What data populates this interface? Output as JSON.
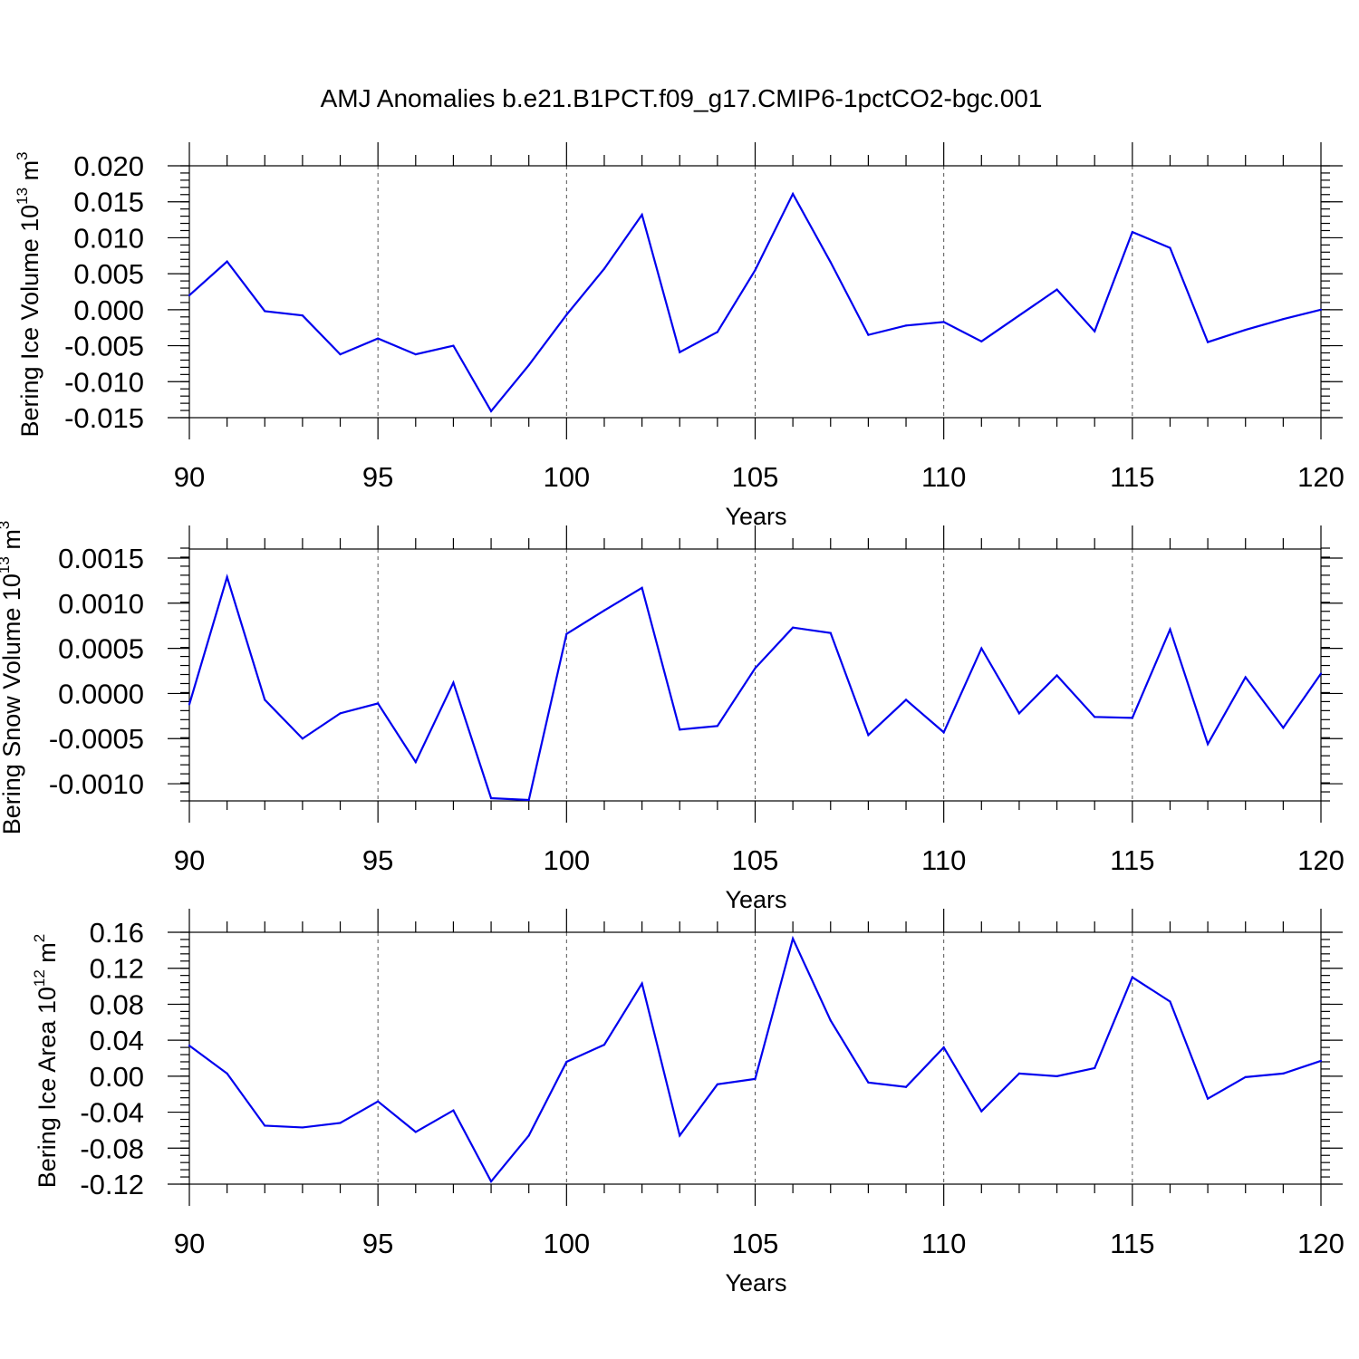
{
  "title": "AMJ Anomalies b.e21.B1PCT.f09_g17.CMIP6-1pctCO2-bgc.001",
  "line_color": "#0000ee",
  "chart_data": [
    {
      "type": "line",
      "name": "bering-ice-volume",
      "ylabel": "Bering Ice Volume 10",
      "ylabel_exp": "13",
      "ylabel_unit": " m",
      "ylabel_unit_exp": "3",
      "xlabel": "Years",
      "xlim": [
        90,
        120
      ],
      "ylim": [
        -0.015,
        0.02
      ],
      "xticks": [
        90,
        95,
        100,
        105,
        110,
        115,
        120
      ],
      "xtick_labels": [
        "90",
        "95",
        "100",
        "105",
        "110",
        "115",
        "120"
      ],
      "yticks": [
        -0.015,
        -0.01,
        -0.005,
        0.0,
        0.005,
        0.01,
        0.015,
        0.02
      ],
      "ytick_labels": [
        "-0.015",
        "-0.010",
        "-0.005",
        "0.000",
        "0.005",
        "0.010",
        "0.015",
        "0.020"
      ],
      "yminor_step": 0.001,
      "grid_x": [
        95,
        100,
        105,
        110,
        115
      ],
      "x": [
        90,
        91,
        92,
        93,
        94,
        95,
        96,
        97,
        98,
        99,
        100,
        101,
        102,
        103,
        104,
        105,
        106,
        107,
        108,
        109,
        110,
        111,
        112,
        113,
        114,
        115,
        116,
        117,
        118,
        119,
        120
      ],
      "values": [
        0.002,
        0.0067,
        -0.0002,
        -0.0008,
        -0.0062,
        -0.004,
        -0.0062,
        -0.005,
        -0.0141,
        -0.0077,
        -0.0007,
        0.0057,
        0.0132,
        -0.0059,
        -0.0031,
        0.0055,
        0.0161,
        0.0066,
        -0.0035,
        -0.0022,
        -0.0017,
        -0.0044,
        -0.0008,
        0.0028,
        -0.003,
        0.0108,
        0.0086,
        -0.0045,
        -0.0028,
        -0.0013,
        0.0
      ]
    },
    {
      "type": "line",
      "name": "bering-snow-volume",
      "ylabel": "Bering Snow Volume 10",
      "ylabel_exp": "13",
      "ylabel_unit": " m",
      "ylabel_unit_exp": "3",
      "xlabel": "Years",
      "xlim": [
        90,
        120
      ],
      "ylim": [
        -0.00119,
        0.0016
      ],
      "xticks": [
        90,
        95,
        100,
        105,
        110,
        115,
        120
      ],
      "xtick_labels": [
        "90",
        "95",
        "100",
        "105",
        "110",
        "115",
        "120"
      ],
      "yticks": [
        -0.001,
        -0.0005,
        0.0,
        0.0005,
        0.001,
        0.0015
      ],
      "ytick_labels": [
        "-0.0010",
        "-0.0005",
        "0.0000",
        "0.0005",
        "0.0010",
        "0.0015"
      ],
      "yminor_step": 0.0001,
      "grid_x": [
        95,
        100,
        105,
        110,
        115
      ],
      "x": [
        90,
        91,
        92,
        93,
        94,
        95,
        96,
        97,
        98,
        99,
        100,
        101,
        102,
        103,
        104,
        105,
        106,
        107,
        108,
        109,
        110,
        111,
        112,
        113,
        114,
        115,
        116,
        117,
        118,
        119,
        120
      ],
      "values": [
        -0.00012,
        0.00129,
        -7e-05,
        -0.0005,
        -0.00022,
        -0.00011,
        -0.00076,
        0.00012,
        -0.00116,
        -0.00118,
        0.00066,
        0.00092,
        0.00117,
        -0.0004,
        -0.00036,
        0.00028,
        0.00073,
        0.00067,
        -0.00046,
        -7e-05,
        -0.00043,
        0.0005,
        -0.00022,
        0.0002,
        -0.00026,
        -0.00027,
        0.00071,
        -0.00056,
        0.00018,
        -0.00038,
        0.00022
      ]
    },
    {
      "type": "line",
      "name": "bering-ice-area",
      "ylabel": "Bering Ice Area 10",
      "ylabel_exp": "12",
      "ylabel_unit": " m",
      "ylabel_unit_exp": "2",
      "xlabel": "Years",
      "xlim": [
        90,
        120
      ],
      "ylim": [
        -0.12,
        0.16
      ],
      "xticks": [
        90,
        95,
        100,
        105,
        110,
        115,
        120
      ],
      "xtick_labels": [
        "90",
        "95",
        "100",
        "105",
        "110",
        "115",
        "120"
      ],
      "yticks": [
        -0.12,
        -0.08,
        -0.04,
        0.0,
        0.04,
        0.08,
        0.12,
        0.16
      ],
      "ytick_labels": [
        "-0.12",
        "-0.08",
        "-0.04",
        "0.00",
        "0.04",
        "0.08",
        "0.12",
        "0.16"
      ],
      "yminor_step": 0.008,
      "grid_x": [
        95,
        100,
        105,
        110,
        115
      ],
      "x": [
        90,
        91,
        92,
        93,
        94,
        95,
        96,
        97,
        98,
        99,
        100,
        101,
        102,
        103,
        104,
        105,
        106,
        107,
        108,
        109,
        110,
        111,
        112,
        113,
        114,
        115,
        116,
        117,
        118,
        119,
        120
      ],
      "values": [
        0.034,
        0.003,
        -0.055,
        -0.057,
        -0.052,
        -0.028,
        -0.062,
        -0.038,
        -0.117,
        -0.066,
        0.016,
        0.035,
        0.103,
        -0.066,
        -0.009,
        -0.003,
        0.153,
        0.062,
        -0.007,
        -0.012,
        0.032,
        -0.039,
        0.003,
        0.0,
        0.009,
        0.11,
        0.083,
        -0.025,
        -0.001,
        0.003,
        0.017
      ]
    }
  ]
}
